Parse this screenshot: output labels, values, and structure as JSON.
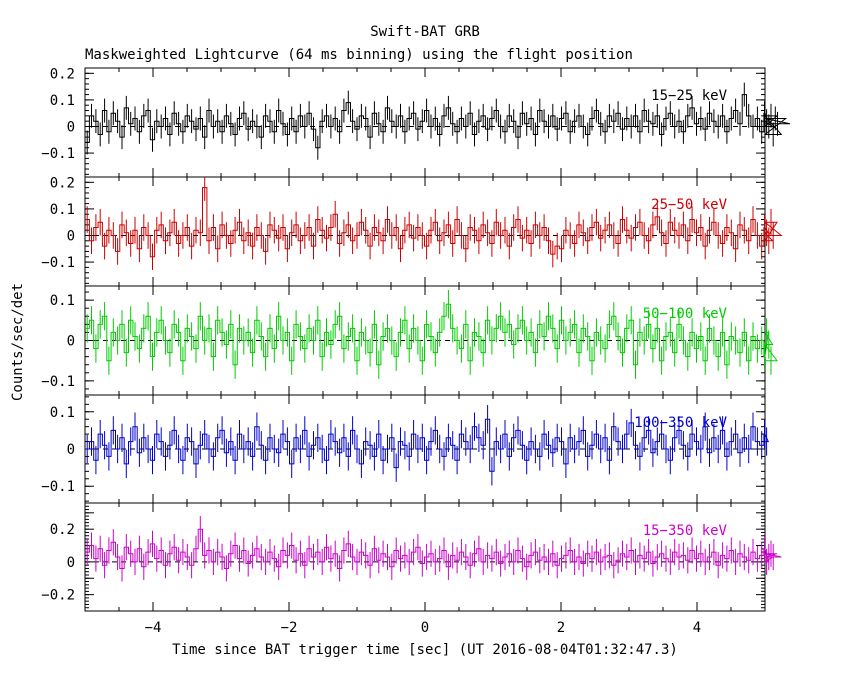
{
  "title": "Swift-BAT GRB",
  "subtitle": "Maskweighted Lightcurve (64 ms binning) using the flight position",
  "ylabel": "Counts/sec/det",
  "xlabel": "Time since BAT trigger time [sec] (UT 2016-08-04T01:32:47.3)",
  "chart_data": {
    "type": "line",
    "title": "Swift-BAT GRB",
    "subtitle": "Maskweighted Lightcurve (64 ms binning) using the flight position",
    "xlabel": "Time since BAT trigger time [sec] (UT 2016-08-04T01:32:47.3)",
    "ylabel": "Counts/sec/det",
    "xlim": [
      -5.0,
      5.0
    ],
    "bin_width": 0.064,
    "x_ticks": [
      -4,
      -2,
      0,
      2,
      4
    ],
    "x_tick_labels": [
      "−4",
      "−2",
      "0",
      "2",
      "4"
    ],
    "grid": false,
    "panels": [
      {
        "name": "15−25 keV",
        "color": "#000000",
        "ylim": [
          -0.19,
          0.22
        ],
        "y_ticks": [
          -0.1,
          0,
          0.1,
          0.2
        ],
        "y_tick_labels": [
          "−0.1",
          "0",
          "0.1",
          "0.2"
        ],
        "error": 0.045,
        "values": [
          -0.06,
          0.04,
          0.02,
          -0.03,
          0.06,
          -0.02,
          0.05,
          0.02,
          -0.04,
          0.07,
          0.01,
          0.03,
          -0.02,
          0.04,
          0.06,
          -0.05,
          0.02,
          0.0,
          0.03,
          -0.03,
          0.05,
          0.01,
          -0.02,
          0.04,
          0.02,
          -0.01,
          0.03,
          -0.04,
          0.06,
          0.0,
          0.02,
          -0.02,
          0.04,
          0.01,
          -0.03,
          0.03,
          0.05,
          -0.01,
          0.02,
          0.0,
          -0.04,
          0.04,
          0.02,
          -0.02,
          0.06,
          0.01,
          -0.03,
          0.03,
          -0.02,
          0.04,
          0.0,
          0.05,
          -0.01,
          -0.08,
          0.02,
          0.04,
          0.0,
          0.03,
          -0.02,
          0.06,
          0.09,
          0.02,
          -0.01,
          0.04,
          0.03,
          -0.04,
          0.05,
          0.01,
          -0.02,
          0.07,
          0.02,
          0.0,
          0.04,
          -0.02,
          0.03,
          0.05,
          -0.01,
          0.02,
          0.06,
          0.0,
          0.03,
          -0.03,
          0.04,
          0.07,
          0.01,
          -0.02,
          0.03,
          0.0,
          0.05,
          -0.03,
          0.02,
          0.04,
          -0.01,
          0.03,
          0.06,
          0.0,
          -0.02,
          0.04,
          0.02,
          -0.04,
          0.05,
          0.01,
          0.03,
          -0.03,
          0.06,
          0.02,
          0.0,
          0.04,
          -0.01,
          0.03,
          0.05,
          -0.02,
          0.02,
          0.04,
          0.0,
          -0.03,
          0.03,
          0.06,
          0.01,
          -0.02,
          0.04,
          0.02,
          0.05,
          -0.01,
          0.03,
          0.0,
          0.04,
          -0.02,
          0.06,
          0.02,
          0.01,
          0.04,
          -0.03,
          0.03,
          0.05,
          0.0,
          0.02,
          -0.02,
          0.04,
          0.07,
          0.01,
          0.03,
          -0.01,
          0.05,
          0.02,
          0.0,
          0.04,
          -0.02,
          0.03,
          0.06,
          0.01,
          0.12,
          0.04,
          0.0,
          0.03,
          -0.02,
          0.05,
          0.02,
          0.0,
          0.04,
          -0.03,
          0.03,
          0.01
        ]
      },
      {
        "name": "25−50 keV",
        "color": "#cc0000",
        "ylim": [
          -0.19,
          0.22
        ],
        "y_ticks": [
          -0.1,
          0,
          0.1,
          0.2
        ],
        "y_tick_labels": [
          "−0.1",
          "0",
          "0.1",
          "0.2"
        ],
        "error": 0.05,
        "values": [
          0.06,
          -0.02,
          0.03,
          0.05,
          -0.04,
          0.02,
          0.0,
          -0.06,
          0.04,
          0.01,
          -0.03,
          0.02,
          -0.05,
          0.03,
          0.0,
          -0.08,
          0.02,
          0.04,
          -0.02,
          0.01,
          0.05,
          -0.03,
          0.0,
          0.03,
          -0.04,
          0.02,
          0.01,
          0.18,
          -0.02,
          0.03,
          -0.05,
          0.04,
          0.0,
          -0.03,
          0.02,
          0.05,
          -0.02,
          0.01,
          -0.04,
          0.03,
          0.0,
          -0.06,
          0.04,
          0.02,
          -0.01,
          0.03,
          -0.05,
          0.01,
          0.04,
          -0.02,
          0.0,
          0.03,
          -0.04,
          0.06,
          0.02,
          -0.01,
          0.03,
          0.08,
          -0.03,
          0.01,
          0.04,
          -0.02,
          0.0,
          0.05,
          0.02,
          -0.04,
          0.03,
          0.01,
          -0.02,
          0.06,
          0.0,
          0.03,
          -0.05,
          0.02,
          0.04,
          -0.01,
          0.03,
          0.0,
          -0.04,
          0.02,
          0.05,
          -0.02,
          0.01,
          0.04,
          -0.03,
          0.06,
          0.0,
          -0.05,
          0.03,
          0.02,
          -0.02,
          0.04,
          0.01,
          -0.03,
          0.05,
          0.0,
          0.02,
          -0.04,
          0.03,
          0.06,
          -0.01,
          0.02,
          -0.03,
          0.04,
          0.0,
          0.03,
          -0.02,
          -0.07,
          -0.04,
          -0.05,
          0.02,
          0.0,
          -0.03,
          0.04,
          0.01,
          -0.02,
          0.03,
          0.05,
          -0.01,
          0.02,
          0.04,
          0.0,
          -0.03,
          0.06,
          0.02,
          -0.01,
          0.03,
          0.05,
          0.0,
          -0.02,
          0.04,
          0.07,
          0.01,
          -0.03,
          0.05,
          0.02,
          0.0,
          0.04,
          -0.02,
          0.06,
          0.01,
          0.03,
          -0.04,
          0.02,
          0.05,
          0.0,
          -0.03,
          0.03,
          0.01,
          -0.05,
          0.04,
          0.02,
          -0.02,
          0.06,
          0.0,
          -0.04,
          0.03,
          0.01,
          -0.02,
          0.05,
          0.0
        ]
      },
      {
        "name": "50−100 keV",
        "color": "#00cc00",
        "ylim": [
          -0.135,
          0.135
        ],
        "y_ticks": [
          -0.1,
          0,
          0.1
        ],
        "y_tick_labels": [
          "−0.1",
          "0",
          "0.1"
        ],
        "error": 0.035,
        "values": [
          0.03,
          0.05,
          -0.02,
          0.04,
          0.06,
          -0.05,
          0.02,
          0.0,
          0.04,
          -0.03,
          0.05,
          0.01,
          -0.02,
          0.03,
          0.06,
          -0.04,
          0.02,
          0.05,
          0.0,
          -0.03,
          0.04,
          0.02,
          -0.05,
          0.03,
          0.01,
          -0.02,
          0.06,
          0.0,
          0.03,
          -0.04,
          0.05,
          0.02,
          -0.01,
          0.04,
          -0.06,
          0.03,
          0.0,
          0.02,
          -0.03,
          0.05,
          0.01,
          -0.04,
          0.03,
          -0.02,
          0.06,
          0.0,
          0.02,
          -0.05,
          0.04,
          0.01,
          -0.02,
          0.03,
          0.0,
          0.05,
          -0.04,
          0.02,
          -0.01,
          0.04,
          0.06,
          -0.02,
          0.01,
          0.03,
          -0.05,
          0.02,
          0.0,
          -0.03,
          0.04,
          -0.06,
          0.01,
          0.03,
          0.0,
          -0.04,
          0.02,
          0.05,
          -0.02,
          0.03,
          0.0,
          -0.05,
          0.04,
          0.01,
          -0.03,
          0.02,
          0.06,
          0.09,
          0.03,
          0.0,
          -0.02,
          0.04,
          -0.05,
          0.02,
          0.01,
          -0.03,
          0.05,
          0.0,
          0.03,
          0.06,
          0.02,
          0.04,
          -0.01,
          0.03,
          0.05,
          0.0,
          0.02,
          -0.03,
          0.04,
          0.01,
          0.06,
          0.03,
          -0.02,
          0.05,
          0.0,
          0.02,
          0.04,
          -0.03,
          0.03,
          0.01,
          -0.05,
          0.02,
          0.0,
          -0.02,
          0.04,
          0.06,
          0.01,
          -0.03,
          0.03,
          0.05,
          -0.06,
          0.02,
          0.0,
          0.04,
          -0.02,
          0.03,
          -0.05,
          0.01,
          0.02,
          -0.03,
          0.04,
          0.0,
          -0.04,
          0.02,
          -0.02,
          0.01,
          -0.05,
          0.03,
          0.0,
          -0.04,
          0.02,
          -0.06,
          0.01,
          0.0,
          -0.03,
          0.02,
          -0.05,
          0.01,
          -0.02,
          0.0,
          -0.04,
          0.02,
          -0.01,
          -0.05
        ]
      },
      {
        "name": "100−350 keV",
        "color": "#0000cc",
        "ylim": [
          -0.145,
          0.145
        ],
        "y_ticks": [
          -0.1,
          0,
          0.1
        ],
        "y_tick_labels": [
          "−0.1",
          "0",
          "0.1"
        ],
        "error": 0.038,
        "values": [
          0.0,
          0.02,
          -0.03,
          0.04,
          0.01,
          -0.02,
          0.05,
          0.0,
          0.03,
          -0.04,
          0.02,
          0.06,
          -0.01,
          0.03,
          0.0,
          -0.03,
          0.04,
          0.02,
          -0.02,
          0.01,
          0.05,
          0.0,
          -0.03,
          0.03,
          0.02,
          -0.04,
          0.01,
          0.04,
          0.0,
          -0.02,
          0.03,
          0.05,
          -0.01,
          0.02,
          -0.03,
          0.04,
          0.0,
          0.02,
          -0.02,
          0.06,
          0.01,
          -0.03,
          0.03,
          0.0,
          -0.01,
          0.04,
          0.02,
          -0.04,
          0.03,
          0.0,
          0.05,
          -0.02,
          0.01,
          0.03,
          0.0,
          -0.03,
          0.04,
          0.02,
          -0.01,
          0.03,
          -0.02,
          0.05,
          0.0,
          -0.04,
          0.02,
          0.01,
          -0.02,
          0.04,
          -0.03,
          0.0,
          0.03,
          -0.05,
          0.02,
          0.01,
          -0.02,
          0.04,
          0.0,
          0.03,
          -0.03,
          0.02,
          0.05,
          0.0,
          -0.02,
          0.03,
          0.01,
          -0.03,
          0.04,
          0.02,
          0.0,
          0.06,
          0.03,
          0.01,
          0.08,
          -0.06,
          0.02,
          0.0,
          0.04,
          -0.02,
          0.03,
          0.05,
          0.01,
          -0.03,
          0.02,
          0.0,
          -0.02,
          0.04,
          0.01,
          -0.01,
          0.03,
          0.02,
          -0.04,
          0.03,
          0.0,
          0.02,
          0.05,
          -0.02,
          0.01,
          0.04,
          0.0,
          0.03,
          -0.03,
          0.06,
          0.02,
          0.0,
          0.04,
          0.07,
          0.01,
          -0.02,
          0.03,
          0.05,
          -0.01,
          0.02,
          0.04,
          0.0,
          -0.03,
          0.03,
          0.05,
          0.01,
          -0.02,
          0.04,
          0.02,
          0.0,
          0.06,
          -0.01,
          0.03,
          0.0,
          0.05,
          -0.02,
          0.02,
          0.04,
          -0.01,
          0.03,
          0.0,
          0.06,
          0.02,
          0.01,
          0.04,
          0.02
        ]
      },
      {
        "name": "15−350 keV",
        "color": "#cc00cc",
        "ylim": [
          -0.3,
          0.36
        ],
        "y_ticks": [
          -0.2,
          -0.1,
          0,
          0.1,
          0.2,
          0.3
        ],
        "y_tick_labels": [
          "−0.2",
          "",
          "0",
          "",
          "0.2",
          ""
        ],
        "error": 0.08,
        "values": [
          0.06,
          0.1,
          0.02,
          0.08,
          -0.02,
          0.07,
          0.12,
          0.03,
          -0.04,
          0.09,
          0.05,
          0.0,
          0.08,
          -0.03,
          0.06,
          0.11,
          0.02,
          0.07,
          -0.02,
          0.05,
          0.09,
          0.01,
          0.06,
          0.03,
          -0.02,
          0.08,
          0.2,
          0.04,
          0.07,
          0.0,
          0.06,
          0.03,
          -0.04,
          0.05,
          0.1,
          0.02,
          0.07,
          -0.01,
          0.04,
          0.08,
          0.03,
          0.0,
          0.06,
          0.02,
          -0.03,
          0.07,
          0.04,
          0.1,
          0.01,
          0.05,
          -0.02,
          0.08,
          0.03,
          0.06,
          0.0,
          0.09,
          0.02,
          0.05,
          -0.04,
          0.07,
          0.11,
          0.03,
          0.0,
          0.06,
          0.04,
          -0.02,
          0.08,
          0.01,
          0.05,
          0.03,
          -0.03,
          0.07,
          0.02,
          0.04,
          0.0,
          0.06,
          0.09,
          -0.01,
          0.03,
          0.05,
          0.0,
          0.02,
          0.07,
          -0.03,
          0.04,
          0.01,
          0.06,
          0.03,
          -0.02,
          0.05,
          0.08,
          0.0,
          0.04,
          0.02,
          0.06,
          -0.01,
          0.03,
          0.05,
          0.0,
          0.07,
          0.02,
          -0.03,
          0.04,
          0.06,
          0.01,
          0.03,
          0.0,
          0.05,
          -0.02,
          0.02,
          0.04,
          0.07,
          0.0,
          0.03,
          -0.01,
          0.05,
          0.02,
          0.06,
          0.0,
          0.03,
          0.04,
          -0.02,
          0.01,
          0.05,
          0.03,
          0.07,
          0.0,
          0.04,
          0.02,
          0.06,
          -0.01,
          0.03,
          0.05,
          0.02,
          0.0,
          0.06,
          0.03,
          0.04,
          0.01,
          0.07,
          0.02,
          0.05,
          0.0,
          0.03,
          0.06,
          -0.02,
          0.04,
          0.02,
          0.07,
          0.0,
          0.05,
          0.03,
          0.01,
          0.06,
          0.02,
          0.04,
          0.08,
          0.0,
          0.03,
          0.05,
          0.03
        ]
      }
    ]
  }
}
